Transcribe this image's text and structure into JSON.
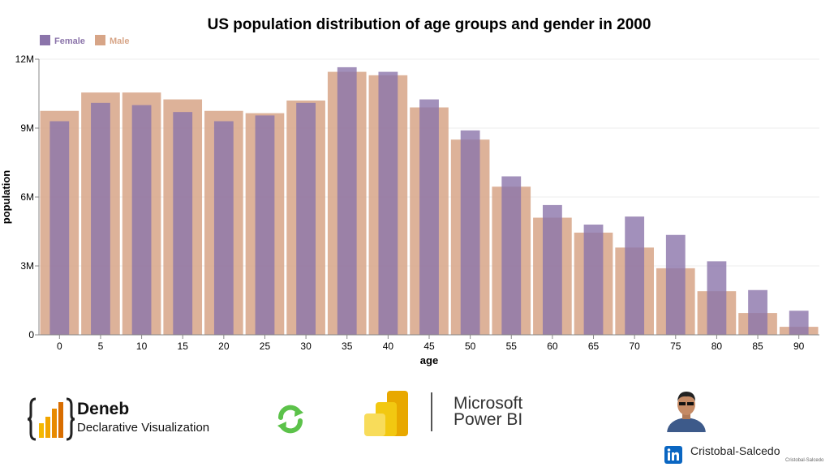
{
  "chart_data": {
    "type": "bar",
    "title": "US population distribution of age groups and gender in 2000",
    "xlabel": "age",
    "ylabel": "population",
    "categories": [
      "0",
      "5",
      "10",
      "15",
      "20",
      "25",
      "30",
      "35",
      "40",
      "45",
      "50",
      "55",
      "60",
      "65",
      "70",
      "75",
      "80",
      "85",
      "90"
    ],
    "series": [
      {
        "name": "Female",
        "color": "#8b74aa",
        "values": [
          9300000,
          10100000,
          10000000,
          9700000,
          9300000,
          9550000,
          10100000,
          11650000,
          11450000,
          10250000,
          8900000,
          6900000,
          5650000,
          4800000,
          5150000,
          4350000,
          3200000,
          1950000,
          1050000
        ]
      },
      {
        "name": "Male",
        "color": "#d7a587",
        "values": [
          9750000,
          10550000,
          10550000,
          10250000,
          9750000,
          9650000,
          10200000,
          11450000,
          11300000,
          9900000,
          8500000,
          6450000,
          5100000,
          4450000,
          3800000,
          2900000,
          1900000,
          950000,
          350000
        ]
      }
    ],
    "ylim": [
      0,
      12000000
    ],
    "yticks": [
      0,
      3000000,
      6000000,
      9000000,
      12000000
    ],
    "ytick_labels": [
      "0",
      "3M",
      "6M",
      "9M",
      "12M"
    ],
    "legend_position": "top-left",
    "grid": true
  },
  "footer": {
    "deneb_title": "Deneb",
    "deneb_subtitle": "Declarative Visualization",
    "powerbi_line1": "Microsoft",
    "powerbi_line2": "Power BI",
    "linkedin_name": "Cristobal-Salcedo",
    "watermark": "Cristobal-Salcedo"
  }
}
